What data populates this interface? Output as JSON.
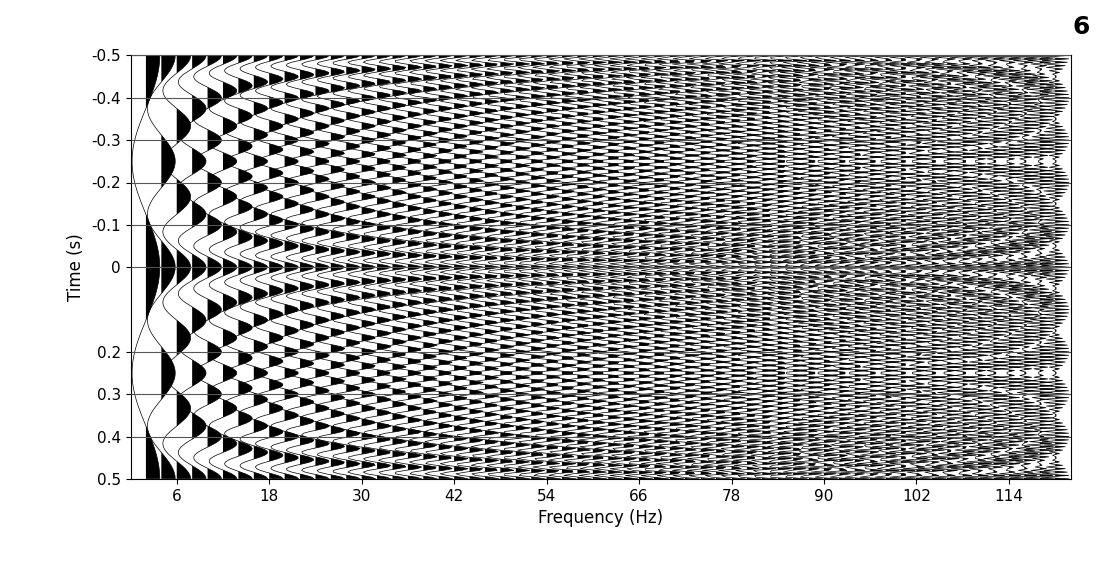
{
  "chart_data": {
    "type": "wiggle",
    "x_label": "Frequency (Hz)",
    "y_label": "Time (s)",
    "annotations": [
      "6"
    ],
    "frequencies": [
      2,
      4,
      6,
      8,
      10,
      12,
      14,
      16,
      18,
      20,
      22,
      24,
      26,
      28,
      30,
      32,
      34,
      36,
      38,
      40,
      42,
      44,
      46,
      48,
      50,
      52,
      54,
      56,
      58,
      60,
      62,
      64,
      66,
      68,
      70,
      72,
      74,
      76,
      78,
      80,
      82,
      84,
      86,
      88,
      90,
      92,
      94,
      96,
      98,
      100,
      102,
      104,
      106,
      108,
      110,
      112,
      114,
      116,
      118,
      120
    ],
    "sample_interval": 0.004,
    "xlim": [
      0,
      122
    ],
    "xticks": [
      6,
      18,
      30,
      42,
      54,
      66,
      78,
      90,
      102,
      114
    ],
    "ylim": [
      0.5,
      -0.5
    ],
    "yticks": [
      -0.5,
      -0.4,
      -0.3,
      -0.2,
      -0.1,
      0,
      0.2,
      0.3,
      0.4,
      0.5
    ],
    "grid": true,
    "color": "#000000"
  }
}
